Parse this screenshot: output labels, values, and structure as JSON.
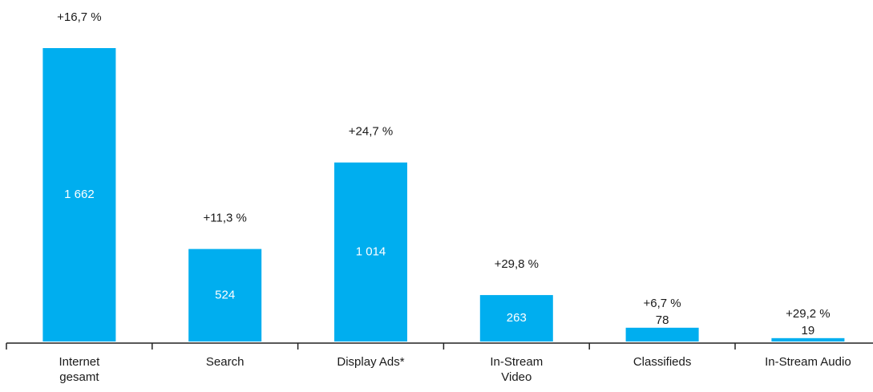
{
  "chart_data": {
    "type": "bar",
    "categories": [
      "Internet\ngesamt",
      "Search",
      "Display Ads*",
      "In-Stream\nVideo",
      "Classifieds",
      "In-Stream Audio"
    ],
    "values": [
      1662,
      524,
      1014,
      263,
      78,
      19
    ],
    "value_labels": [
      "1 662",
      "524",
      "1 014",
      "263",
      "78",
      "19"
    ],
    "annotations": [
      "+16,7 %",
      "+11,3 %",
      "+24,7 %",
      "+29,8 %",
      "+6,7 %",
      "+29,2 %"
    ],
    "color": "#00aeef"
  }
}
